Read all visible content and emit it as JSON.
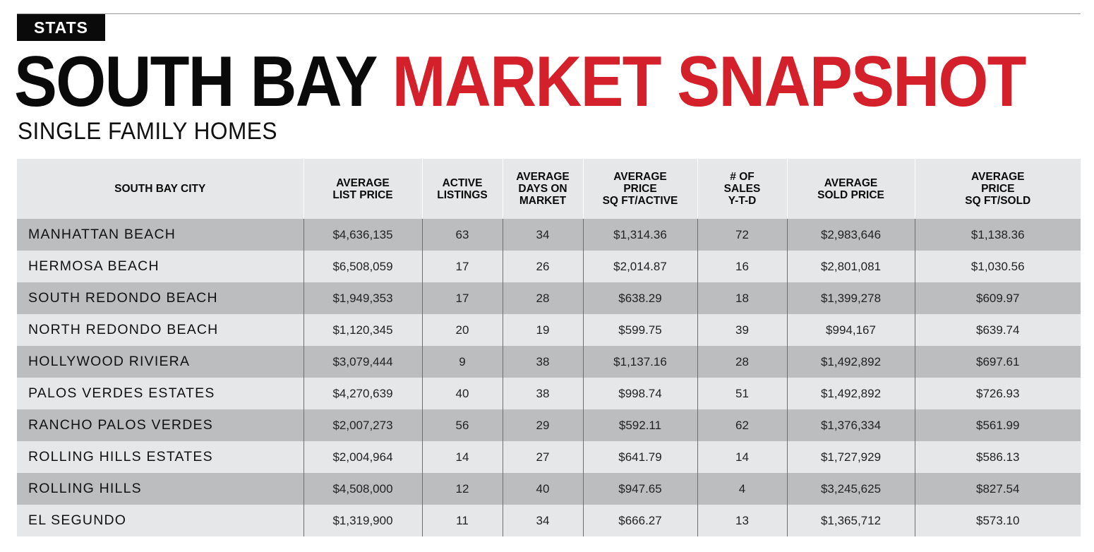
{
  "header": {
    "tag": "STATS",
    "title_black": "SOUTH BAY",
    "title_red": "MARKET SNAPSHOT",
    "subtitle": "SINGLE FAMILY HOMES",
    "accent_color": "#d3202a"
  },
  "table": {
    "columns": [
      [
        "SOUTH BAY CITY"
      ],
      [
        "AVERAGE",
        "LIST PRICE"
      ],
      [
        "ACTIVE",
        "LISTINGS"
      ],
      [
        "AVERAGE",
        "DAYS ON",
        "MARKET"
      ],
      [
        "AVERAGE",
        "PRICE",
        "SQ FT/ACTIVE"
      ],
      [
        "# OF",
        "SALES",
        "Y-T-D"
      ],
      [
        "AVERAGE",
        "SOLD PRICE"
      ],
      [
        "AVERAGE",
        "PRICE",
        "SQ FT/SOLD"
      ]
    ],
    "rows": [
      [
        "MANHATTAN BEACH",
        "$4,636,135",
        "63",
        "34",
        "$1,314.36",
        "72",
        "$2,983,646",
        "$1,138.36"
      ],
      [
        "HERMOSA BEACH",
        "$6,508,059",
        "17",
        "26",
        "$2,014.87",
        "16",
        "$2,801,081",
        "$1,030.56"
      ],
      [
        "SOUTH REDONDO BEACH",
        "$1,949,353",
        "17",
        "28",
        "$638.29",
        "18",
        "$1,399,278",
        "$609.97"
      ],
      [
        "NORTH REDONDO BEACH",
        "$1,120,345",
        "20",
        "19",
        "$599.75",
        "39",
        "$994,167",
        "$639.74"
      ],
      [
        "HOLLYWOOD RIVIERA",
        "$3,079,444",
        "9",
        "38",
        "$1,137.16",
        "28",
        "$1,492,892",
        "$697.61"
      ],
      [
        "PALOS VERDES ESTATES",
        "$4,270,639",
        "40",
        "38",
        "$998.74",
        "51",
        "$1,492,892",
        "$726.93"
      ],
      [
        "RANCHO PALOS VERDES",
        "$2,007,273",
        "56",
        "29",
        "$592.11",
        "62",
        "$1,376,334",
        "$561.99"
      ],
      [
        "ROLLING HILLS ESTATES",
        "$2,004,964",
        "14",
        "27",
        "$641.79",
        "14",
        "$1,727,929",
        "$586.13"
      ],
      [
        "ROLLING HILLS",
        "$4,508,000",
        "12",
        "40",
        "$947.65",
        "4",
        "$3,245,625",
        "$827.54"
      ],
      [
        "EL SEGUNDO",
        "$1,319,900",
        "11",
        "34",
        "$666.27",
        "13",
        "$1,365,712",
        "$573.10"
      ]
    ]
  }
}
